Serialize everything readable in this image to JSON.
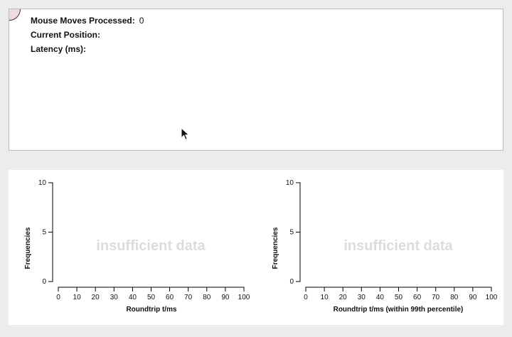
{
  "stats": {
    "moves_label": "Mouse Moves Processed:",
    "moves_value": "0",
    "position_label": "Current Position:",
    "position_value": "",
    "latency_label": "Latency (ms):",
    "latency_value": ""
  },
  "histograms": [
    {
      "y_label": "Frequencies",
      "x_label": "Roundtrip t/ms",
      "empty_message": "insufficient data"
    },
    {
      "y_label": "Frequencies",
      "x_label": "Roundtrip t/ms (within 99th percentile)",
      "empty_message": "insufficient data"
    }
  ],
  "chart_data": [
    {
      "type": "bar",
      "title": "",
      "xlabel": "Roundtrip t/ms",
      "ylabel": "Frequencies",
      "x_ticks": [
        "0",
        "10",
        "20",
        "30",
        "40",
        "50",
        "60",
        "70",
        "80",
        "90",
        "100"
      ],
      "y_ticks": [
        "0",
        "5",
        "10"
      ],
      "xlim": [
        0,
        100
      ],
      "ylim": [
        0,
        10
      ],
      "values": [],
      "grid": false
    },
    {
      "type": "bar",
      "title": "",
      "xlabel": "Roundtrip t/ms (within 99th percentile)",
      "ylabel": "Frequencies",
      "x_ticks": [
        "0",
        "10",
        "20",
        "30",
        "40",
        "50",
        "60",
        "70",
        "80",
        "90",
        "100"
      ],
      "y_ticks": [
        "0",
        "5",
        "10"
      ],
      "xlim": [
        0,
        100
      ],
      "ylim": [
        0,
        10
      ],
      "values": [],
      "grid": false
    }
  ]
}
